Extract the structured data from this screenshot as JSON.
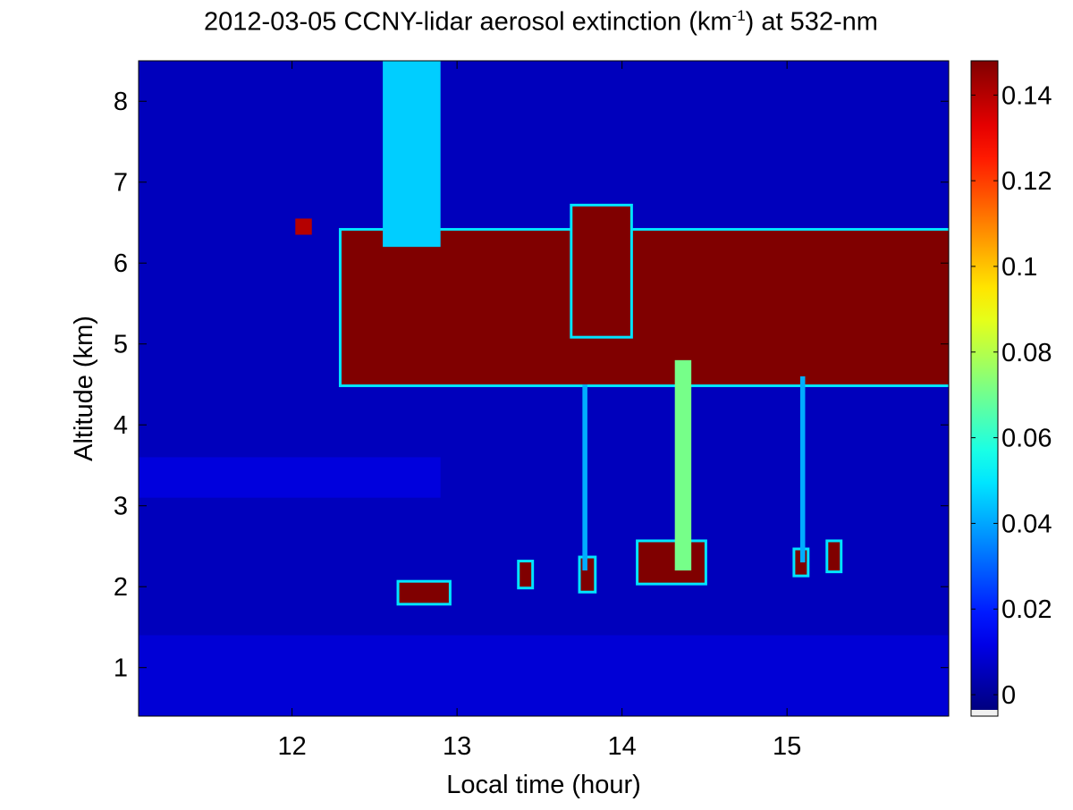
{
  "chart_data": {
    "type": "heatmap",
    "title": {
      "prefix": "2012-03-05 CCNY-lidar aerosol extinction (km",
      "superscript": "-1",
      "suffix": ") at 532-nm"
    },
    "xlabel": "Local time (hour)",
    "ylabel": "Altitude (km)",
    "xlim": [
      11.07,
      15.98
    ],
    "ylim": [
      0.4,
      8.5
    ],
    "xticks": [
      12,
      13,
      14,
      15
    ],
    "yticks": [
      1,
      2,
      3,
      4,
      5,
      6,
      7,
      8
    ],
    "colorbar": {
      "range": [
        -0.005,
        0.148
      ],
      "ticks": [
        0,
        0.02,
        0.04,
        0.06,
        0.08,
        0.1,
        0.12,
        0.14
      ],
      "tick_labels": [
        "0",
        "0.02",
        "0.04",
        "0.06",
        "0.08",
        "0.1",
        "0.12",
        "0.14"
      ],
      "colormap": "jet",
      "under_color": "#f0f0f0"
    },
    "background_value": 0.004,
    "features": [
      {
        "name": "boundary-layer-haze",
        "t_start": 11.07,
        "t_end": 15.98,
        "z_bottom": 0.4,
        "z_top": 1.4,
        "value": 0.008
      },
      {
        "name": "residual-layer",
        "t_start": 11.07,
        "t_end": 12.9,
        "z_bottom": 3.1,
        "z_top": 3.6,
        "value": 0.009
      },
      {
        "name": "main-cloud-layer",
        "t_start": 12.3,
        "t_end": 15.98,
        "z_bottom": 4.5,
        "z_top": 6.4,
        "value": 0.148
      },
      {
        "name": "cloud-top-plateau",
        "t_start": 13.7,
        "t_end": 14.05,
        "z_bottom": 5.1,
        "z_top": 6.7,
        "value": 0.148
      },
      {
        "name": "high-cloud-fallstreak",
        "t_start": 12.55,
        "t_end": 12.9,
        "z_bottom": 6.2,
        "z_top": 8.5,
        "value": 0.045
      },
      {
        "name": "small-cloud-fragment",
        "t_start": 12.02,
        "t_end": 12.12,
        "z_bottom": 6.35,
        "z_top": 6.55,
        "value": 0.14
      },
      {
        "name": "low-cloud-patch",
        "t_start": 12.65,
        "t_end": 12.95,
        "z_bottom": 1.8,
        "z_top": 2.05,
        "value": 0.148
      },
      {
        "name": "low-cloud-patch",
        "t_start": 13.38,
        "t_end": 13.45,
        "z_bottom": 2.0,
        "z_top": 2.3,
        "value": 0.148
      },
      {
        "name": "low-cloud-patch",
        "t_start": 13.75,
        "t_end": 13.83,
        "z_bottom": 1.95,
        "z_top": 2.35,
        "value": 0.148
      },
      {
        "name": "low-cloud-patch",
        "t_start": 14.1,
        "t_end": 14.5,
        "z_bottom": 2.05,
        "z_top": 2.55,
        "value": 0.148
      },
      {
        "name": "low-cloud-patch",
        "t_start": 15.05,
        "t_end": 15.12,
        "z_bottom": 2.15,
        "z_top": 2.45,
        "value": 0.148
      },
      {
        "name": "low-cloud-patch",
        "t_start": 15.25,
        "t_end": 15.32,
        "z_bottom": 2.2,
        "z_top": 2.55,
        "value": 0.148
      },
      {
        "name": "precipitation-streak",
        "t_start": 14.32,
        "t_end": 14.42,
        "z_bottom": 2.2,
        "z_top": 4.8,
        "value": 0.07
      },
      {
        "name": "precipitation-streak",
        "t_start": 13.76,
        "t_end": 13.79,
        "z_bottom": 2.2,
        "z_top": 4.5,
        "value": 0.04
      },
      {
        "name": "precipitation-streak",
        "t_start": 15.08,
        "t_end": 15.11,
        "z_bottom": 2.3,
        "z_top": 4.6,
        "value": 0.04
      }
    ]
  }
}
